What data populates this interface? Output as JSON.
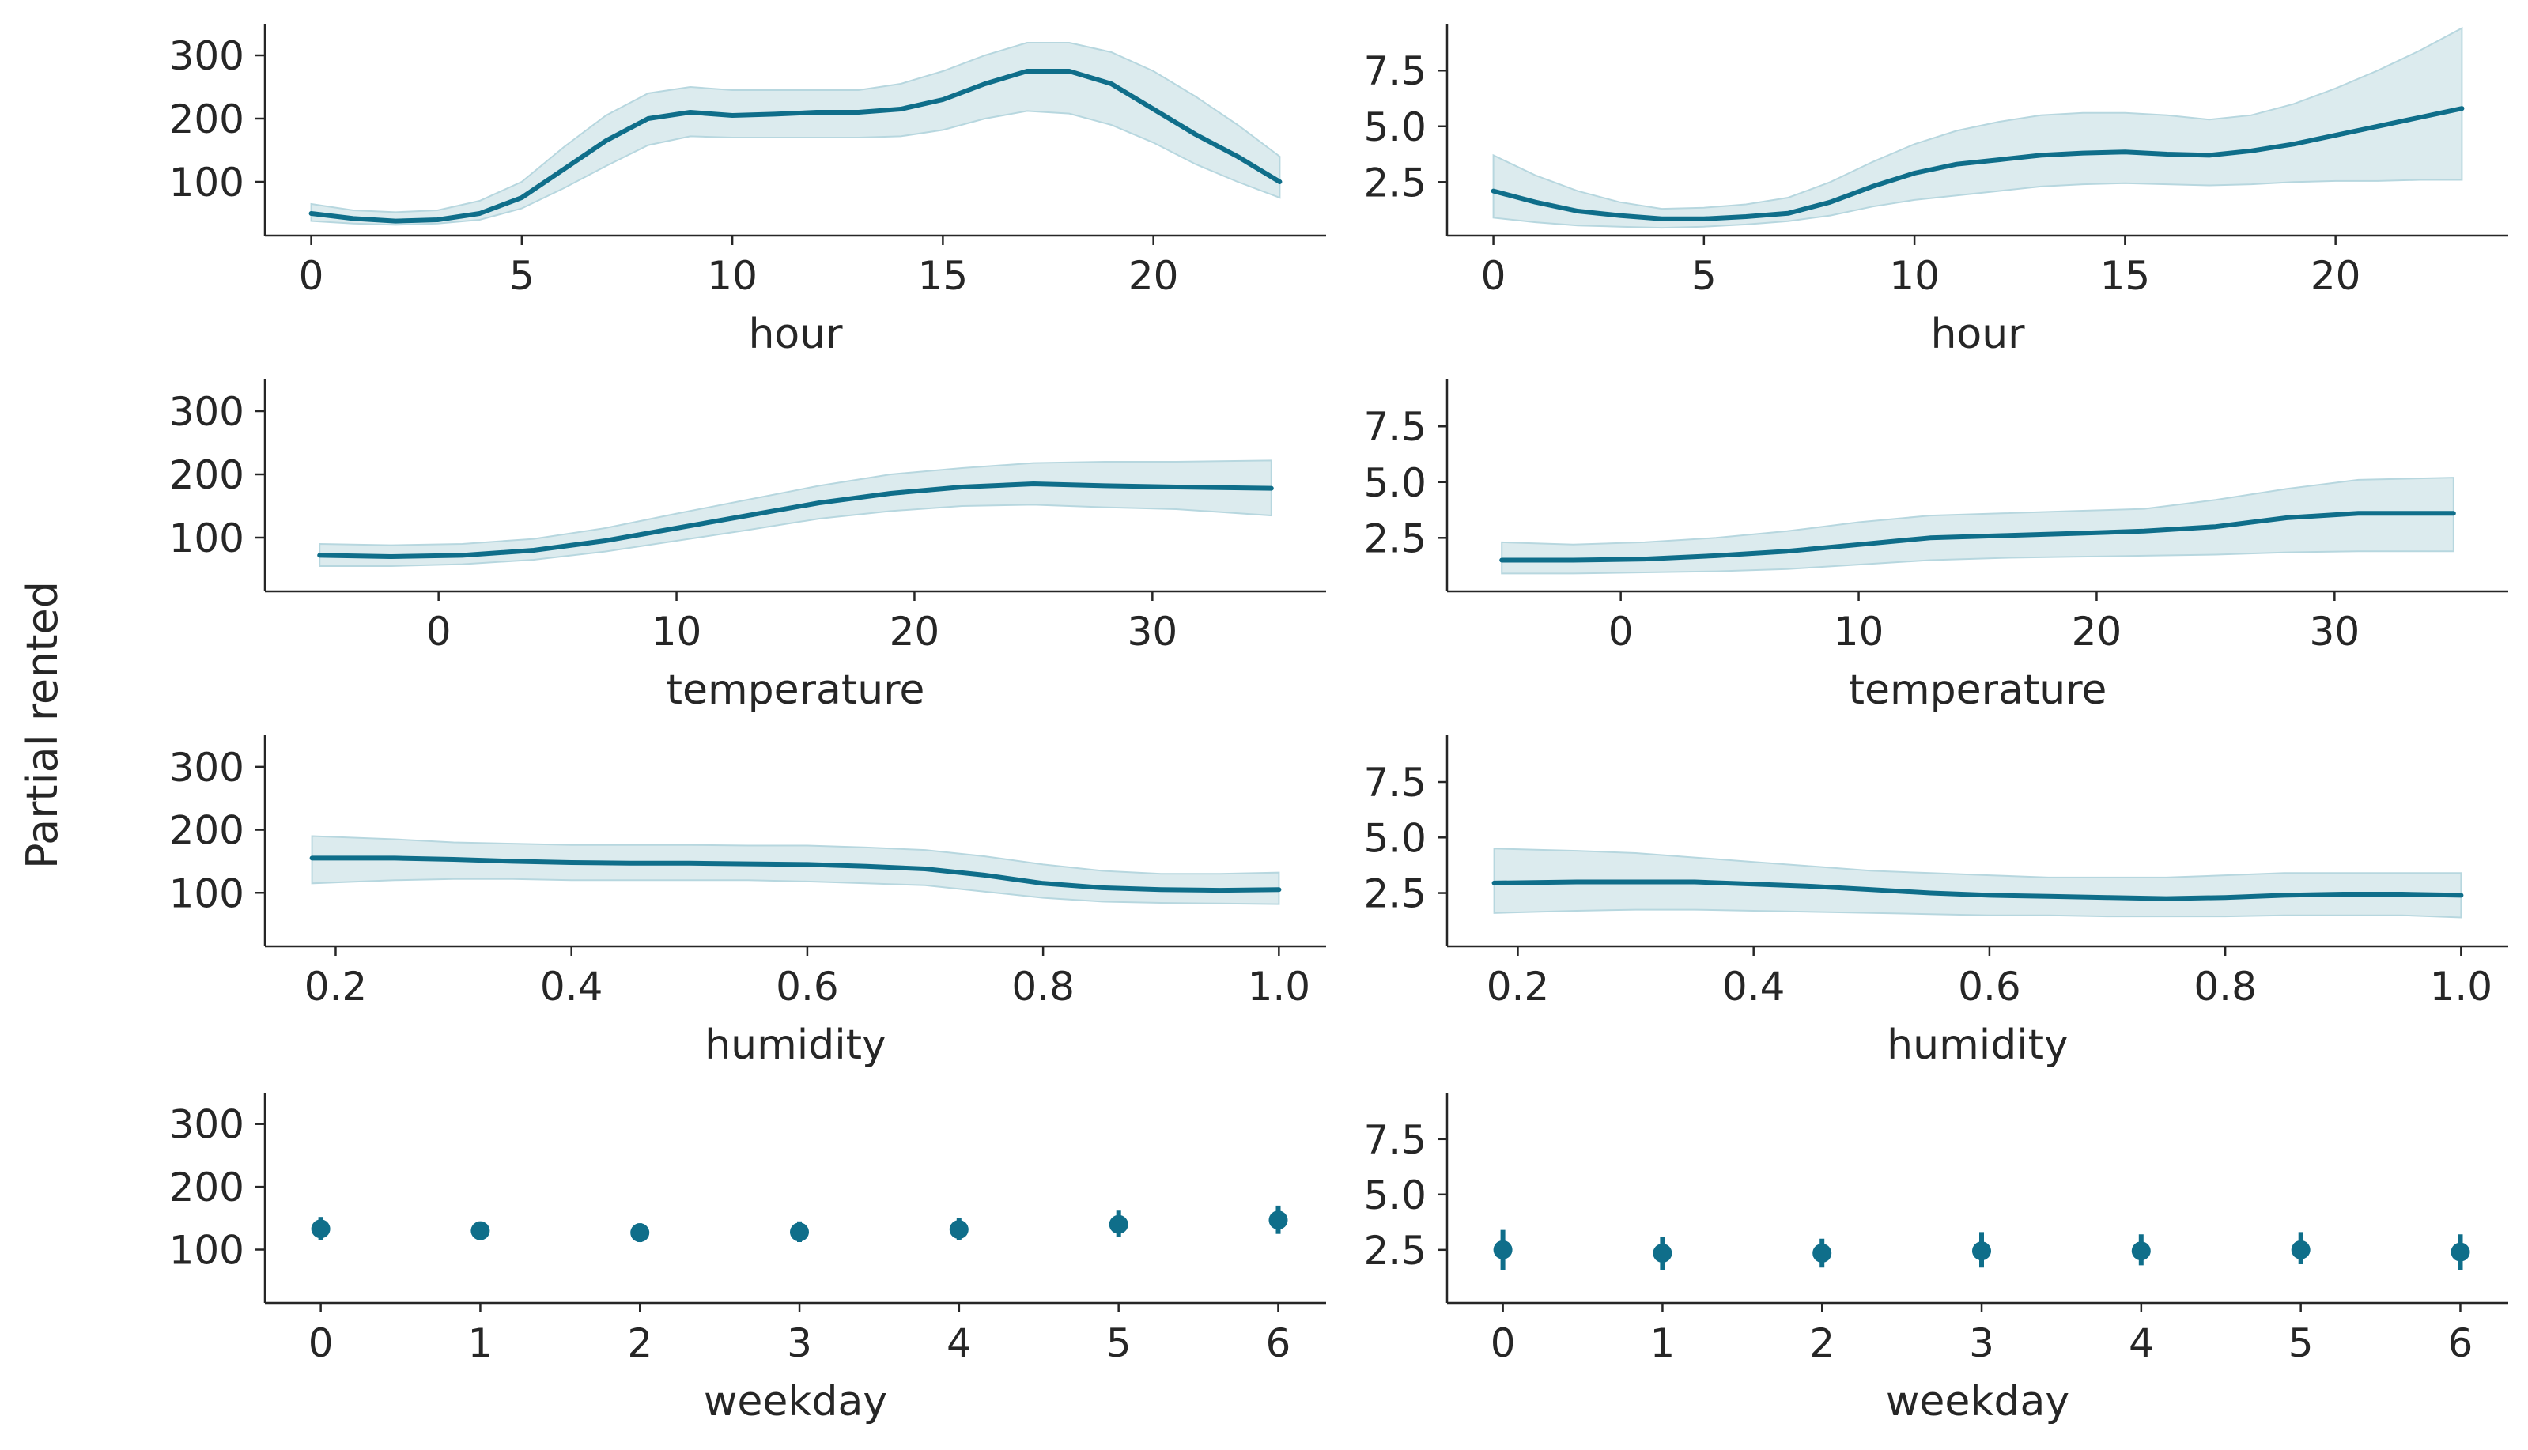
{
  "figure": {
    "ylabel": "Partial rented",
    "colors": {
      "line": "#0f6e8a",
      "band": "#dcebee",
      "band_edge": "#b7d7df",
      "axis": "#262626"
    }
  },
  "chart_data": [
    {
      "type": "line",
      "xlabel": "hour",
      "xlim": [
        -1.1,
        24.1
      ],
      "ylim": [
        15,
        350
      ],
      "xticks": [
        "0",
        "5",
        "10",
        "15",
        "20"
      ],
      "xtick_values": [
        0,
        5,
        10,
        15,
        20
      ],
      "yticks": [
        "100",
        "200",
        "300"
      ],
      "ytick_values": [
        100,
        200,
        300
      ],
      "series": [
        {
          "x": [
            0,
            1,
            2,
            3,
            4,
            5,
            6,
            7,
            8,
            9,
            10,
            11,
            12,
            13,
            14,
            15,
            16,
            17,
            18,
            19,
            20,
            21,
            22,
            23
          ],
          "y": [
            50,
            42,
            38,
            40,
            50,
            75,
            120,
            165,
            200,
            210,
            205,
            207,
            210,
            210,
            215,
            230,
            255,
            275,
            275,
            255,
            215,
            175,
            140,
            100
          ],
          "lower": [
            38,
            34,
            32,
            34,
            40,
            58,
            90,
            125,
            158,
            172,
            170,
            170,
            170,
            170,
            172,
            182,
            200,
            212,
            208,
            190,
            162,
            128,
            100,
            75
          ],
          "upper": [
            65,
            55,
            52,
            55,
            70,
            100,
            155,
            205,
            240,
            250,
            245,
            245,
            245,
            245,
            255,
            275,
            300,
            320,
            320,
            305,
            275,
            235,
            190,
            140
          ]
        }
      ]
    },
    {
      "type": "line",
      "xlabel": "hour",
      "xlim": [
        -1.1,
        24.1
      ],
      "ylim": [
        0.1,
        9.6
      ],
      "xticks": [
        "0",
        "5",
        "10",
        "15",
        "20"
      ],
      "xtick_values": [
        0,
        5,
        10,
        15,
        20
      ],
      "yticks": [
        "2.5",
        "5.0",
        "7.5"
      ],
      "ytick_values": [
        2.5,
        5.0,
        7.5
      ],
      "series": [
        {
          "x": [
            0,
            1,
            2,
            3,
            4,
            5,
            6,
            7,
            8,
            9,
            10,
            11,
            12,
            13,
            14,
            15,
            16,
            17,
            18,
            19,
            20,
            21,
            22,
            23
          ],
          "y": [
            2.1,
            1.6,
            1.2,
            1.0,
            0.85,
            0.85,
            0.95,
            1.1,
            1.6,
            2.3,
            2.9,
            3.3,
            3.5,
            3.7,
            3.8,
            3.85,
            3.75,
            3.7,
            3.9,
            4.2,
            4.6,
            5.0,
            5.4,
            5.8
          ],
          "lower": [
            0.9,
            0.7,
            0.55,
            0.5,
            0.45,
            0.5,
            0.6,
            0.75,
            1.0,
            1.4,
            1.7,
            1.9,
            2.1,
            2.3,
            2.4,
            2.45,
            2.4,
            2.35,
            2.4,
            2.5,
            2.55,
            2.55,
            2.6,
            2.6
          ],
          "upper": [
            3.7,
            2.8,
            2.1,
            1.6,
            1.3,
            1.35,
            1.5,
            1.8,
            2.5,
            3.4,
            4.2,
            4.8,
            5.2,
            5.5,
            5.6,
            5.6,
            5.5,
            5.3,
            5.5,
            6.0,
            6.7,
            7.5,
            8.4,
            9.4
          ]
        }
      ]
    },
    {
      "type": "line",
      "xlabel": "temperature",
      "xlim": [
        -7.3,
        37.3
      ],
      "ylim": [
        15,
        350
      ],
      "xticks": [
        "0",
        "10",
        "20",
        "30"
      ],
      "xtick_values": [
        0,
        10,
        20,
        30
      ],
      "yticks": [
        "100",
        "200",
        "300"
      ],
      "ytick_values": [
        100,
        200,
        300
      ],
      "series": [
        {
          "x": [
            -5,
            -2,
            1,
            4,
            7,
            10,
            13,
            16,
            19,
            22,
            25,
            28,
            31,
            35
          ],
          "y": [
            72,
            70,
            72,
            80,
            95,
            115,
            135,
            155,
            170,
            180,
            185,
            182,
            180,
            178
          ],
          "lower": [
            55,
            55,
            58,
            65,
            78,
            95,
            112,
            130,
            142,
            150,
            152,
            148,
            145,
            135
          ],
          "upper": [
            90,
            88,
            90,
            98,
            115,
            138,
            160,
            182,
            200,
            210,
            218,
            220,
            220,
            222
          ]
        }
      ]
    },
    {
      "type": "line",
      "xlabel": "temperature",
      "xlim": [
        -7.3,
        37.3
      ],
      "ylim": [
        0.1,
        9.6
      ],
      "xticks": [
        "0",
        "10",
        "20",
        "30"
      ],
      "xtick_values": [
        0,
        10,
        20,
        30
      ],
      "yticks": [
        "2.5",
        "5.0",
        "7.5"
      ],
      "ytick_values": [
        2.5,
        5.0,
        7.5
      ],
      "series": [
        {
          "x": [
            -5,
            -2,
            1,
            4,
            7,
            10,
            13,
            16,
            19,
            22,
            25,
            28,
            31,
            35
          ],
          "y": [
            1.5,
            1.5,
            1.55,
            1.7,
            1.9,
            2.2,
            2.5,
            2.6,
            2.7,
            2.8,
            3.0,
            3.4,
            3.6,
            3.6
          ],
          "lower": [
            0.9,
            0.9,
            0.95,
            1.0,
            1.1,
            1.3,
            1.5,
            1.6,
            1.65,
            1.7,
            1.75,
            1.85,
            1.9,
            1.9
          ],
          "upper": [
            2.3,
            2.2,
            2.3,
            2.5,
            2.8,
            3.2,
            3.5,
            3.6,
            3.7,
            3.8,
            4.2,
            4.7,
            5.1,
            5.2
          ]
        }
      ]
    },
    {
      "type": "line",
      "xlabel": "humidity",
      "xlim": [
        0.14,
        1.04
      ],
      "ylim": [
        15,
        350
      ],
      "xticks": [
        "0.2",
        "0.4",
        "0.6",
        "0.8",
        "1.0"
      ],
      "xtick_values": [
        0.2,
        0.4,
        0.6,
        0.8,
        1.0
      ],
      "yticks": [
        "100",
        "200",
        "300"
      ],
      "ytick_values": [
        100,
        200,
        300
      ],
      "series": [
        {
          "x": [
            0.18,
            0.25,
            0.3,
            0.35,
            0.4,
            0.45,
            0.5,
            0.55,
            0.6,
            0.65,
            0.7,
            0.75,
            0.8,
            0.85,
            0.9,
            0.95,
            1.0
          ],
          "y": [
            155,
            155,
            153,
            150,
            148,
            147,
            147,
            146,
            145,
            142,
            138,
            128,
            115,
            108,
            105,
            104,
            105
          ],
          "lower": [
            115,
            120,
            122,
            122,
            120,
            120,
            120,
            120,
            118,
            115,
            112,
            102,
            92,
            86,
            84,
            83,
            82
          ],
          "upper": [
            190,
            185,
            180,
            178,
            176,
            176,
            176,
            175,
            175,
            172,
            168,
            158,
            145,
            135,
            130,
            130,
            132
          ]
        }
      ]
    },
    {
      "type": "line",
      "xlabel": "humidity",
      "xlim": [
        0.14,
        1.04
      ],
      "ylim": [
        0.1,
        9.6
      ],
      "xticks": [
        "0.2",
        "0.4",
        "0.6",
        "0.8",
        "1.0"
      ],
      "xtick_values": [
        0.2,
        0.4,
        0.6,
        0.8,
        1.0
      ],
      "yticks": [
        "2.5",
        "5.0",
        "7.5"
      ],
      "ytick_values": [
        2.5,
        5.0,
        7.5
      ],
      "series": [
        {
          "x": [
            0.18,
            0.25,
            0.3,
            0.35,
            0.4,
            0.45,
            0.5,
            0.55,
            0.6,
            0.65,
            0.7,
            0.75,
            0.8,
            0.85,
            0.9,
            0.95,
            1.0
          ],
          "y": [
            2.95,
            3.0,
            3.0,
            3.0,
            2.9,
            2.8,
            2.65,
            2.5,
            2.4,
            2.35,
            2.3,
            2.25,
            2.3,
            2.4,
            2.45,
            2.45,
            2.4
          ],
          "lower": [
            1.6,
            1.7,
            1.75,
            1.75,
            1.7,
            1.65,
            1.6,
            1.55,
            1.5,
            1.5,
            1.45,
            1.45,
            1.45,
            1.5,
            1.5,
            1.5,
            1.4
          ],
          "upper": [
            4.5,
            4.4,
            4.3,
            4.1,
            3.9,
            3.7,
            3.5,
            3.4,
            3.3,
            3.2,
            3.2,
            3.2,
            3.3,
            3.4,
            3.4,
            3.4,
            3.4
          ]
        }
      ]
    },
    {
      "type": "scatter",
      "xlabel": "weekday",
      "xlim": [
        -0.35,
        6.3
      ],
      "ylim": [
        15,
        350
      ],
      "xticks": [
        "0",
        "1",
        "2",
        "3",
        "4",
        "5",
        "6"
      ],
      "xtick_values": [
        0,
        1,
        2,
        3,
        4,
        5,
        6
      ],
      "yticks": [
        "100",
        "200",
        "300"
      ],
      "ytick_values": [
        100,
        200,
        300
      ],
      "series": [
        {
          "x": [
            0,
            1,
            2,
            3,
            4,
            5,
            6
          ],
          "y": [
            133,
            130,
            127,
            128,
            132,
            140,
            147
          ],
          "lower": [
            115,
            115,
            112,
            112,
            115,
            120,
            125
          ],
          "upper": [
            152,
            145,
            142,
            145,
            150,
            162,
            170
          ]
        }
      ]
    },
    {
      "type": "scatter",
      "xlabel": "weekday",
      "xlim": [
        -0.35,
        6.3
      ],
      "ylim": [
        0.1,
        9.6
      ],
      "xticks": [
        "0",
        "1",
        "2",
        "3",
        "4",
        "5",
        "6"
      ],
      "xtick_values": [
        0,
        1,
        2,
        3,
        4,
        5,
        6
      ],
      "yticks": [
        "2.5",
        "5.0",
        "7.5"
      ],
      "ytick_values": [
        2.5,
        5.0,
        7.5
      ],
      "series": [
        {
          "x": [
            0,
            1,
            2,
            3,
            4,
            5,
            6
          ],
          "y": [
            2.5,
            2.35,
            2.35,
            2.45,
            2.45,
            2.5,
            2.4
          ],
          "lower": [
            1.6,
            1.6,
            1.7,
            1.7,
            1.8,
            1.85,
            1.6
          ],
          "upper": [
            3.4,
            3.1,
            3.0,
            3.3,
            3.2,
            3.3,
            3.2
          ]
        }
      ]
    }
  ]
}
